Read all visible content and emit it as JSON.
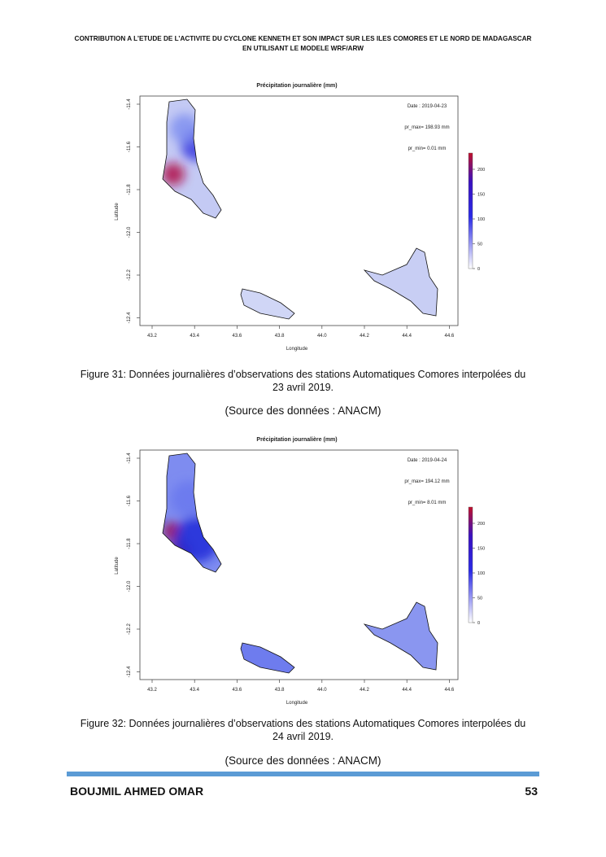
{
  "header": {
    "line1": "CONTRIBUTION A L’ETUDE DE L’ACTIVITE DU CYCLONE KENNETH ET SON IMPACT SUR LES ILES COMORES ET LE NORD DE MADAGASCAR",
    "line2": "EN UTILISANT LE MODELE WRF/ARW"
  },
  "figures": [
    {
      "plot": {
        "title": "Précipitation journalière (mm)",
        "date": "Date : 2019-04-23",
        "pr_max": "pr_max= 198.93 mm",
        "pr_min": "pr_min= 0.01 mm",
        "x_label": "Longitude",
        "y_label": "Latitude",
        "x_ticks": [
          "43.2",
          "43.4",
          "43.6",
          "43.8",
          "44.0",
          "44.2",
          "44.4",
          "44.6"
        ],
        "y_ticks": [
          "-11.4",
          "-11.6",
          "-11.8",
          "-12.0",
          "-12.2",
          "-12.4"
        ],
        "colorbar_ticks": [
          "0",
          "50",
          "100",
          "150",
          "200"
        ]
      },
      "caption": "Figure 31: Données journalières d’observations des stations Automatiques Comores interpolées du 23 avril 2019.",
      "source": "(Source des données : ANACM)"
    },
    {
      "plot": {
        "title": "Précipitation journalière (mm)",
        "date": "Date : 2019-04-24",
        "pr_max": "pr_max= 194.12 mm",
        "pr_min": "pr_min= 8.01 mm",
        "x_label": "Longitude",
        "y_label": "Latitude",
        "x_ticks": [
          "43.2",
          "43.4",
          "43.6",
          "43.8",
          "44.0",
          "44.2",
          "44.4",
          "44.6"
        ],
        "y_ticks": [
          "-11.4",
          "-11.6",
          "-11.8",
          "-12.0",
          "-12.2",
          "-12.4"
        ],
        "colorbar_ticks": [
          "0",
          "50",
          "100",
          "150",
          "200"
        ]
      },
      "caption": "Figure 32: Données journalières d’observations des stations Automatiques Comores interpolées du 24 avril 2019.",
      "source": "(Source des données : ANACM)"
    }
  ],
  "footer": {
    "author": "BOUJMIL AHMED OMAR",
    "page": "53"
  }
}
